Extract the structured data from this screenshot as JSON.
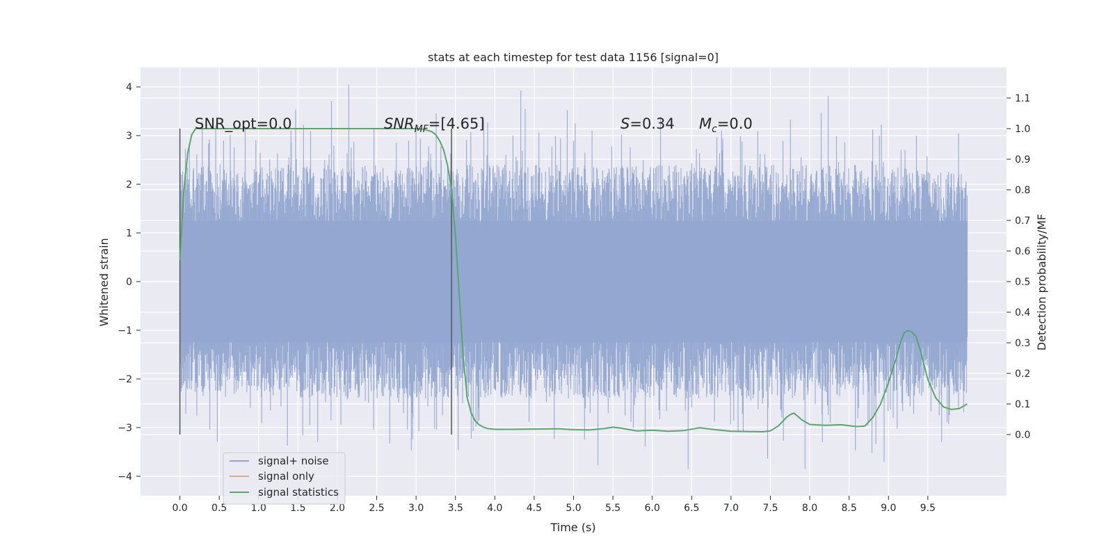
{
  "chart_data": {
    "type": "line",
    "title": "stats at each timestep for test data 1156 [signal=0]",
    "xlabel": "Time (s)",
    "ylabel_left": "Whitened strain",
    "ylabel_right": "Detection probability/MF",
    "xlim": [
      -0.5,
      10.5
    ],
    "ylim_left": [
      -4.4,
      4.4
    ],
    "ylim_right": [
      -0.2,
      1.2
    ],
    "x_ticks": [
      "0.0",
      "0.5",
      "1.0",
      "1.5",
      "2.0",
      "2.5",
      "3.0",
      "3.5",
      "4.0",
      "4.5",
      "5.0",
      "5.5",
      "6.0",
      "6.5",
      "7.0",
      "7.5",
      "8.0",
      "8.5",
      "9.0",
      "9.5"
    ],
    "y_ticks_left": [
      "4",
      "3",
      "2",
      "1",
      "0",
      "−1",
      "−2",
      "−3",
      "−4"
    ],
    "y_ticks_right": [
      "1.1",
      "1.0",
      "0.9",
      "0.8",
      "0.7",
      "0.6",
      "0.5",
      "0.4",
      "0.3",
      "0.2",
      "0.1",
      "0.0"
    ],
    "grid": true,
    "legend_position": "bottom-left",
    "annotations": {
      "snr_opt": "SNR_opt=0.0",
      "snr_mf_sym": "SNR",
      "snr_mf_sub": "MF",
      "snr_mf_val": "=[4.65]",
      "s_sym": "S",
      "s_val": "=0.34",
      "mc_sym": "M",
      "mc_sub": "c",
      "mc_val": "=0.0"
    },
    "vlines_x": [
      0.0,
      3.45
    ],
    "noise_envelope": {
      "x": [
        0.0,
        1.0,
        2.0,
        3.0,
        4.0,
        5.0,
        6.0,
        7.0,
        8.0,
        9.0,
        10.0
      ],
      "upper_typical": [
        2.4,
        2.4,
        2.4,
        2.4,
        2.4,
        2.4,
        2.4,
        2.4,
        2.4,
        2.4,
        2.2
      ],
      "lower_typical": [
        -2.3,
        -2.4,
        -2.4,
        -2.4,
        -2.4,
        -2.4,
        -2.4,
        -2.4,
        -2.4,
        -2.4,
        -2.3
      ],
      "peak_high": 4.05,
      "peak_low": -3.85
    },
    "series": [
      {
        "name": "signal+ noise",
        "color": "#92a6d0",
        "axis": "left"
      },
      {
        "name": "signal only",
        "color": "#e8a586",
        "axis": "left"
      },
      {
        "name": "signal statistics",
        "color": "#55a868",
        "axis": "right",
        "x": [
          0.0,
          0.05,
          0.1,
          0.15,
          0.2,
          0.3,
          0.5,
          1.0,
          2.0,
          2.8,
          3.0,
          3.1,
          3.2,
          3.25,
          3.3,
          3.35,
          3.4,
          3.45,
          3.5,
          3.55,
          3.6,
          3.65,
          3.7,
          3.75,
          3.8,
          3.85,
          3.9,
          4.0,
          4.2,
          4.5,
          4.8,
          5.0,
          5.2,
          5.4,
          5.5,
          5.6,
          5.8,
          6.0,
          6.2,
          6.4,
          6.6,
          6.8,
          7.0,
          7.2,
          7.4,
          7.5,
          7.6,
          7.7,
          7.75,
          7.8,
          7.9,
          8.0,
          8.2,
          8.4,
          8.6,
          8.7,
          8.8,
          8.9,
          9.0,
          9.1,
          9.15,
          9.2,
          9.25,
          9.3,
          9.35,
          9.4,
          9.5,
          9.6,
          9.7,
          9.8,
          9.9,
          10.0
        ],
        "y": [
          0.57,
          0.8,
          0.92,
          0.98,
          1.0,
          1.0,
          1.0,
          1.0,
          1.0,
          1.0,
          1.0,
          0.998,
          0.99,
          0.98,
          0.96,
          0.93,
          0.88,
          0.8,
          0.65,
          0.45,
          0.25,
          0.12,
          0.07,
          0.045,
          0.032,
          0.025,
          0.02,
          0.017,
          0.017,
          0.018,
          0.019,
          0.016,
          0.015,
          0.02,
          0.024,
          0.021,
          0.012,
          0.014,
          0.011,
          0.013,
          0.022,
          0.016,
          0.011,
          0.01,
          0.009,
          0.012,
          0.028,
          0.055,
          0.065,
          0.07,
          0.048,
          0.033,
          0.03,
          0.032,
          0.026,
          0.028,
          0.055,
          0.1,
          0.17,
          0.25,
          0.3,
          0.333,
          0.34,
          0.335,
          0.32,
          0.28,
          0.18,
          0.12,
          0.09,
          0.082,
          0.085,
          0.1
        ]
      }
    ]
  }
}
